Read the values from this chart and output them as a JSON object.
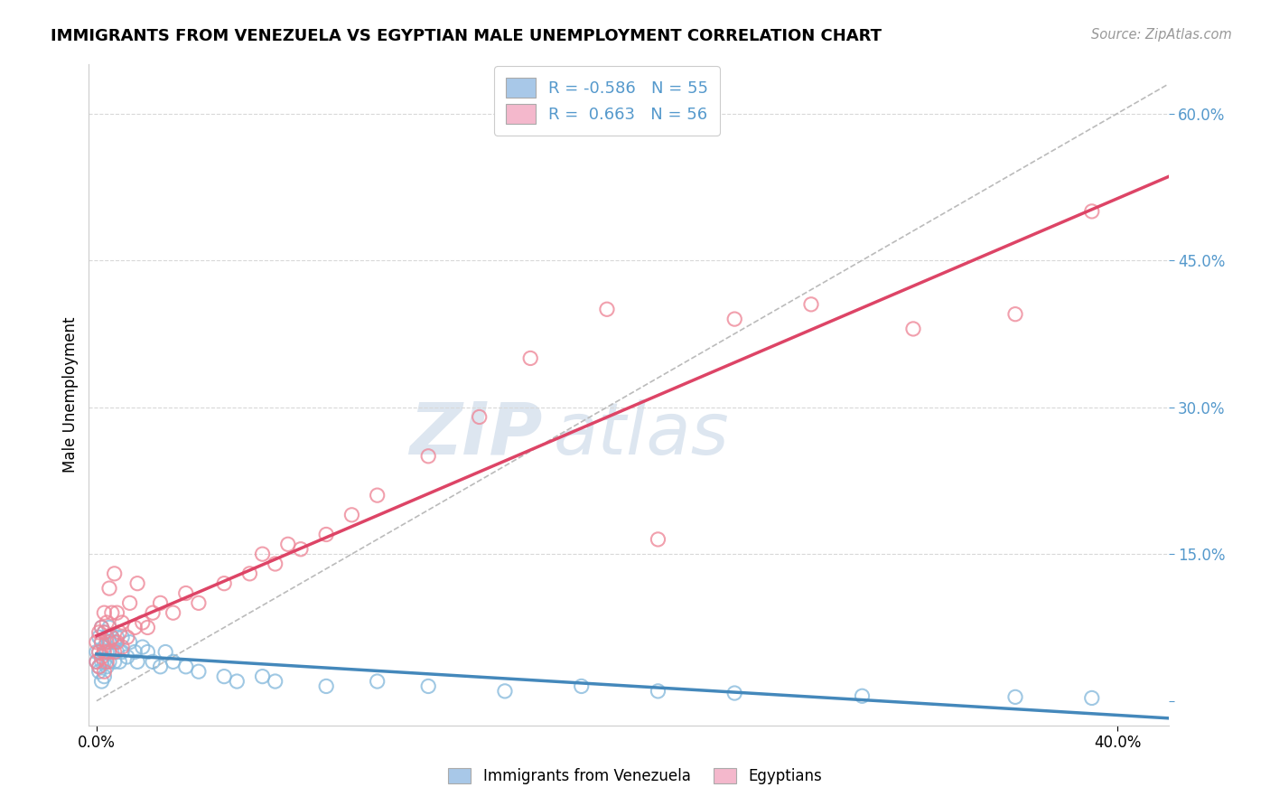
{
  "title": "IMMIGRANTS FROM VENEZUELA VS EGYPTIAN MALE UNEMPLOYMENT CORRELATION CHART",
  "source": "Source: ZipAtlas.com",
  "ylabel": "Male Unemployment",
  "xlim": [
    -0.003,
    0.42
  ],
  "ylim": [
    -0.025,
    0.65
  ],
  "y_ticks": [
    0.0,
    0.15,
    0.3,
    0.45,
    0.6
  ],
  "y_tick_labels": [
    "",
    "15.0%",
    "30.0%",
    "45.0%",
    "60.0%"
  ],
  "legend_line1": "R = -0.586   N = 55",
  "legend_line2": "R =  0.663   N = 56",
  "blue_patch_color": "#a8c8e8",
  "pink_patch_color": "#f4b8cc",
  "blue_scatter_color": "#88bbdd",
  "pink_scatter_color": "#ee8899",
  "blue_line_color": "#4488bb",
  "pink_line_color": "#dd4466",
  "diagonal_color": "#bbbbbb",
  "tick_color": "#5599cc",
  "watermark_color": "#dde6f0",
  "background_color": "#ffffff",
  "blue_points_x": [
    0.0,
    0.0,
    0.001,
    0.001,
    0.001,
    0.001,
    0.002,
    0.002,
    0.002,
    0.002,
    0.003,
    0.003,
    0.003,
    0.003,
    0.004,
    0.004,
    0.004,
    0.005,
    0.005,
    0.005,
    0.006,
    0.006,
    0.007,
    0.007,
    0.008,
    0.008,
    0.009,
    0.01,
    0.01,
    0.012,
    0.013,
    0.015,
    0.016,
    0.018,
    0.02,
    0.022,
    0.025,
    0.027,
    0.03,
    0.035,
    0.04,
    0.05,
    0.055,
    0.065,
    0.07,
    0.09,
    0.11,
    0.13,
    0.16,
    0.19,
    0.22,
    0.25,
    0.3,
    0.36,
    0.39
  ],
  "blue_points_y": [
    0.05,
    0.04,
    0.035,
    0.05,
    0.065,
    0.03,
    0.04,
    0.06,
    0.075,
    0.02,
    0.04,
    0.055,
    0.07,
    0.025,
    0.05,
    0.065,
    0.035,
    0.04,
    0.06,
    0.075,
    0.05,
    0.065,
    0.04,
    0.06,
    0.05,
    0.065,
    0.04,
    0.05,
    0.065,
    0.045,
    0.06,
    0.05,
    0.04,
    0.055,
    0.05,
    0.04,
    0.035,
    0.05,
    0.04,
    0.035,
    0.03,
    0.025,
    0.02,
    0.025,
    0.02,
    0.015,
    0.02,
    0.015,
    0.01,
    0.015,
    0.01,
    0.008,
    0.005,
    0.004,
    0.003
  ],
  "pink_points_x": [
    0.0,
    0.0,
    0.001,
    0.001,
    0.001,
    0.002,
    0.002,
    0.002,
    0.003,
    0.003,
    0.003,
    0.003,
    0.004,
    0.004,
    0.004,
    0.005,
    0.005,
    0.006,
    0.006,
    0.007,
    0.007,
    0.008,
    0.008,
    0.009,
    0.01,
    0.01,
    0.012,
    0.013,
    0.015,
    0.016,
    0.018,
    0.02,
    0.022,
    0.025,
    0.03,
    0.035,
    0.04,
    0.05,
    0.06,
    0.065,
    0.07,
    0.075,
    0.08,
    0.09,
    0.1,
    0.11,
    0.13,
    0.15,
    0.17,
    0.2,
    0.22,
    0.25,
    0.28,
    0.32,
    0.36,
    0.39
  ],
  "pink_points_y": [
    0.04,
    0.06,
    0.05,
    0.07,
    0.035,
    0.06,
    0.075,
    0.045,
    0.05,
    0.07,
    0.09,
    0.03,
    0.06,
    0.08,
    0.04,
    0.05,
    0.115,
    0.065,
    0.09,
    0.05,
    0.13,
    0.06,
    0.09,
    0.07,
    0.055,
    0.08,
    0.065,
    0.1,
    0.075,
    0.12,
    0.08,
    0.075,
    0.09,
    0.1,
    0.09,
    0.11,
    0.1,
    0.12,
    0.13,
    0.15,
    0.14,
    0.16,
    0.155,
    0.17,
    0.19,
    0.21,
    0.25,
    0.29,
    0.35,
    0.4,
    0.165,
    0.39,
    0.405,
    0.38,
    0.395,
    0.5
  ]
}
